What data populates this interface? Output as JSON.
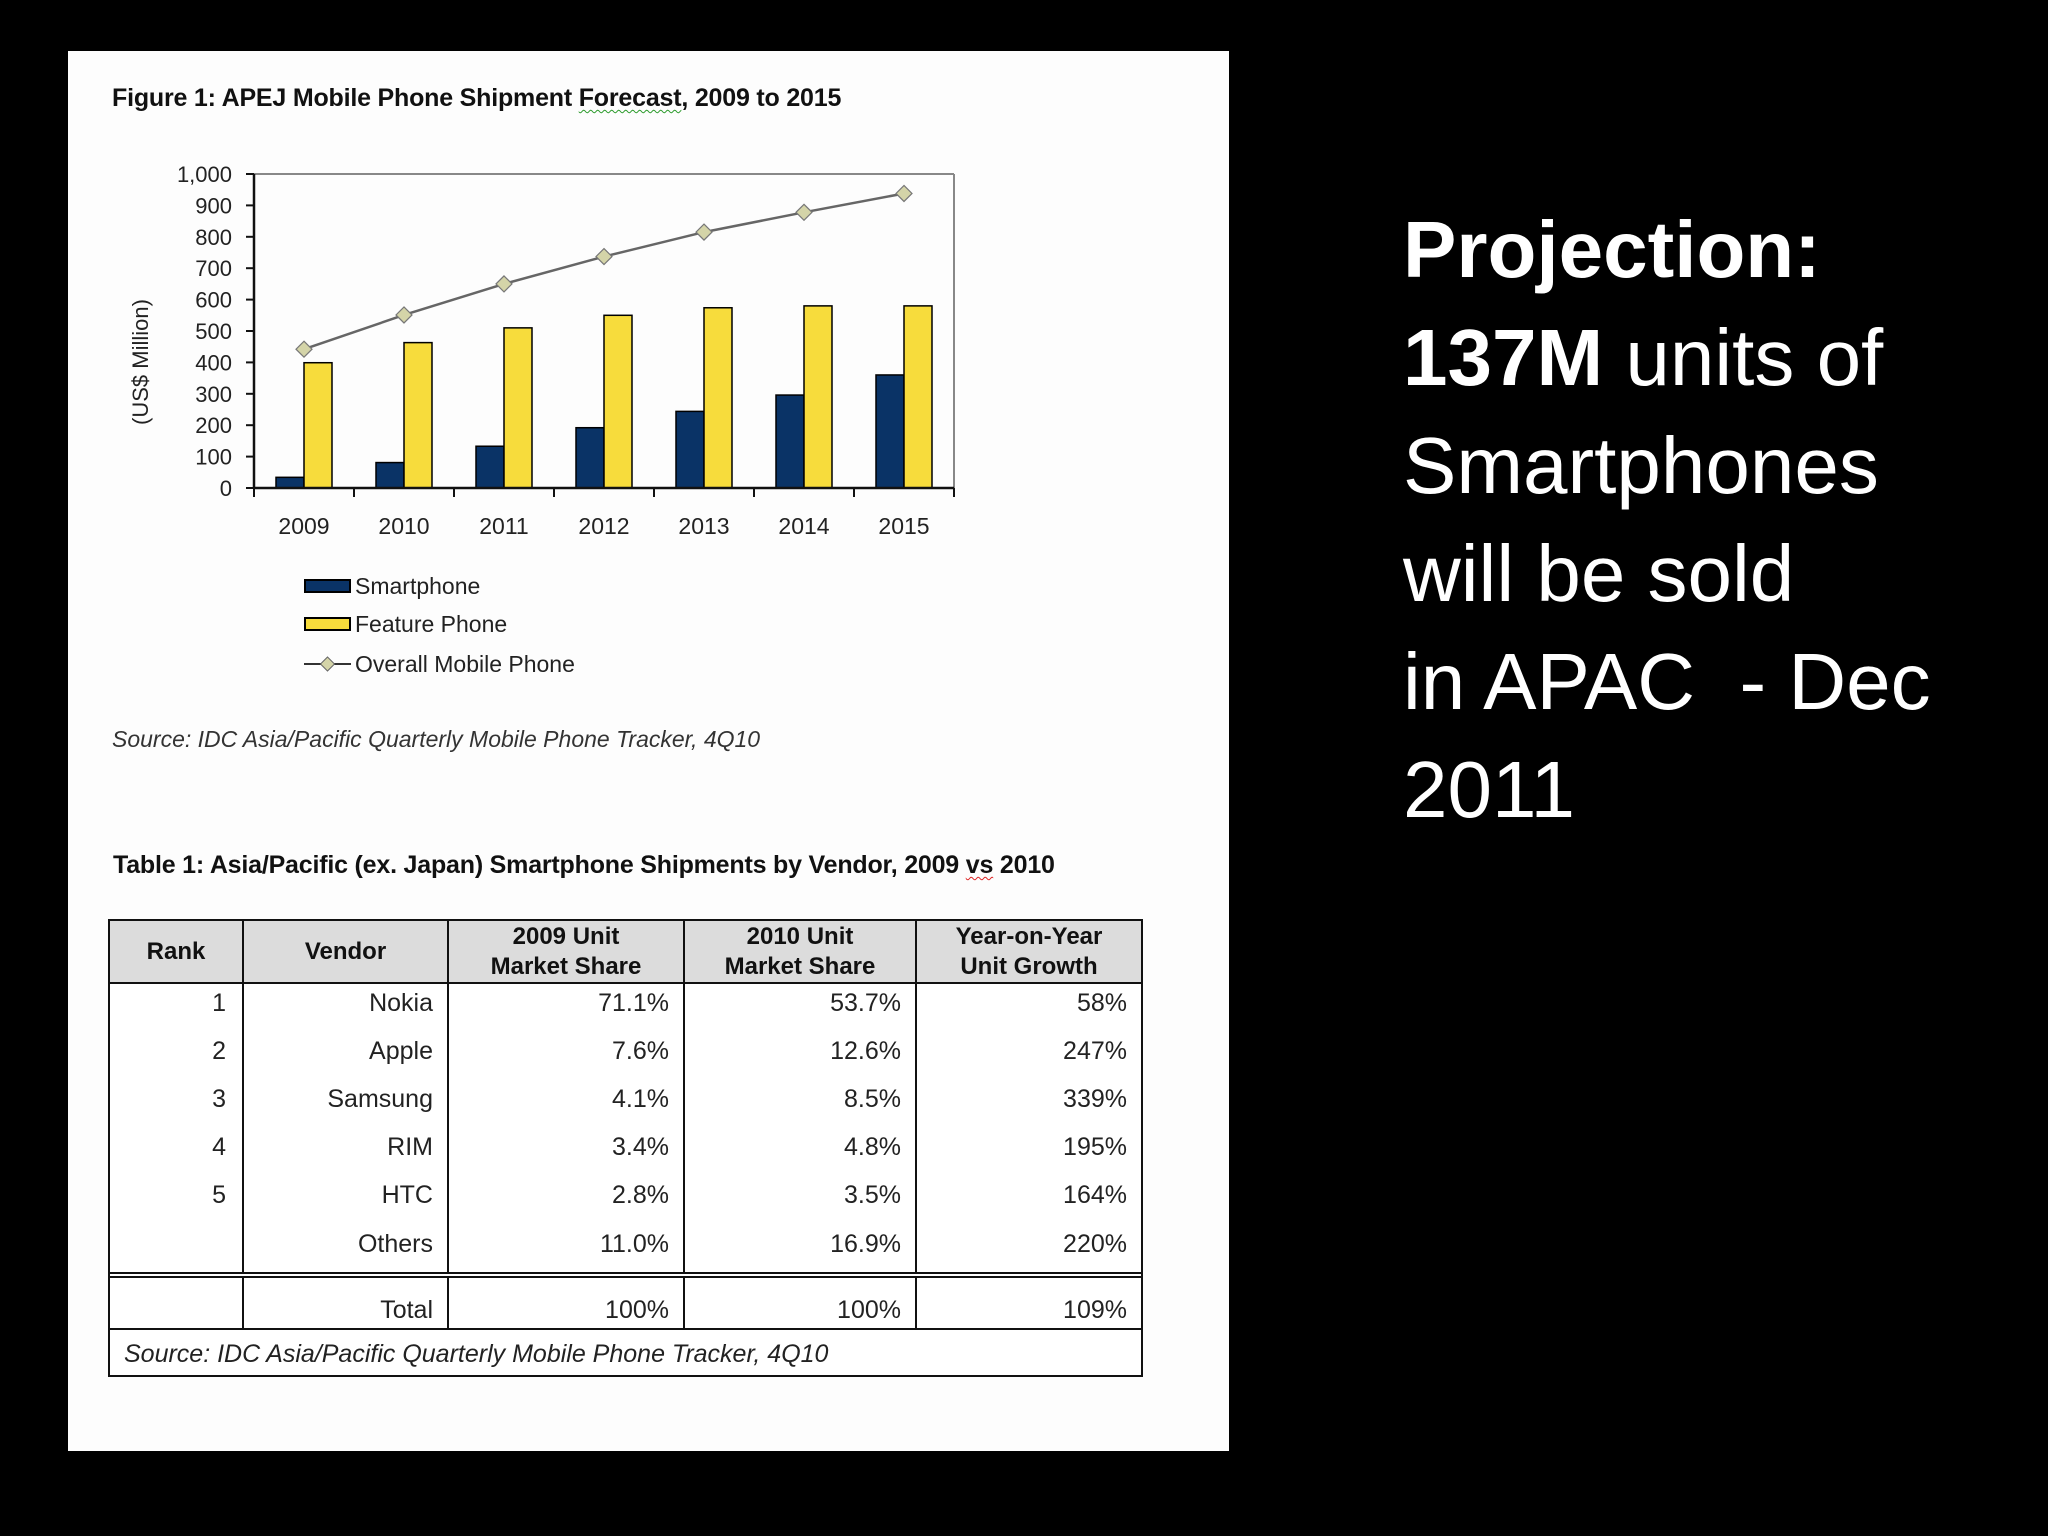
{
  "figure": {
    "title_prefix": "Figure 1: APEJ Mobile Phone Shipment ",
    "title_flagged_word": "Forecast",
    "title_suffix": ", 2009 to 2015",
    "source": "Source: IDC Asia/Pacific Quarterly  Mobile Phone Tracker, 4Q10"
  },
  "chart_data": {
    "type": "bar",
    "title": "Figure 1: APEJ Mobile Phone Shipment Forecast, 2009 to 2015",
    "xlabel": "",
    "ylabel": "(US$ Million)",
    "ylim": [
      0,
      1000
    ],
    "yticks": [
      "0",
      "100",
      "200",
      "300",
      "400",
      "500",
      "600",
      "700",
      "800",
      "900",
      "1,000"
    ],
    "categories": [
      "2009",
      "2010",
      "2011",
      "2012",
      "2013",
      "2014",
      "2015"
    ],
    "series": [
      {
        "name": "Smartphone",
        "type": "bar",
        "color": "#0a3366",
        "values": [
          34,
          81,
          133,
          192,
          244,
          296,
          360
        ]
      },
      {
        "name": "Feature Phone",
        "type": "bar",
        "color": "#f7dc3c",
        "values": [
          399,
          463,
          510,
          550,
          574,
          580,
          580
        ]
      },
      {
        "name": "Overall Mobile Phone",
        "type": "line",
        "color": "#d4d4a8",
        "values": [
          442,
          551,
          650,
          737,
          815,
          878,
          938
        ]
      }
    ],
    "legend_position": "bottom-left",
    "grid": false
  },
  "legend": {
    "items": [
      {
        "label": "Smartphone",
        "color": "#0a3366"
      },
      {
        "label": "Feature Phone",
        "color": "#f7dc3c"
      },
      {
        "label": "Overall Mobile Phone",
        "color": "#d4d4a8"
      }
    ]
  },
  "table": {
    "title_prefix": "Table 1: Asia/Pacific (ex. Japan)  Smartphone Shipments by Vendor, 2009 ",
    "title_flagged_word": "vs",
    "title_suffix": " 2010",
    "headers": [
      "Rank",
      "Vendor",
      "2009 Unit\nMarket Share",
      "2010 Unit\nMarket Share",
      "Year-on-Year\nUnit Growth"
    ],
    "header_lines": [
      [
        "Rank"
      ],
      [
        "Vendor"
      ],
      [
        "2009 Unit",
        "Market Share"
      ],
      [
        "2010 Unit",
        "Market Share"
      ],
      [
        "Year-on-Year",
        "Unit Growth"
      ]
    ],
    "rows": [
      {
        "rank": "1",
        "vendor": "Nokia",
        "share_2009": "71.1%",
        "share_2010": "53.7%",
        "growth": "58%"
      },
      {
        "rank": "2",
        "vendor": "Apple",
        "share_2009": "7.6%",
        "share_2010": "12.6%",
        "growth": "247%"
      },
      {
        "rank": "3",
        "vendor": "Samsung",
        "share_2009": "4.1%",
        "share_2010": "8.5%",
        "growth": "339%"
      },
      {
        "rank": "4",
        "vendor": "RIM",
        "share_2009": "3.4%",
        "share_2010": "4.8%",
        "growth": "195%"
      },
      {
        "rank": "5",
        "vendor": "HTC",
        "share_2009": "2.8%",
        "share_2010": "3.5%",
        "growth": "164%"
      },
      {
        "rank": "",
        "vendor": "Others",
        "share_2009": "11.0%",
        "share_2010": "16.9%",
        "growth": "220%"
      }
    ],
    "total": {
      "rank": "",
      "vendor": "Total",
      "share_2009": "100%",
      "share_2010": "100%",
      "growth": "109%"
    },
    "source": "Source: IDC Asia/Pacific Quarterly Mobile Phone Tracker, 4Q10"
  },
  "side_note": {
    "line1": "Projection:",
    "line2_bold": "137M",
    "line2_rest": " units of",
    "line3": "Smartphones",
    "line4": "will be sold",
    "line5": "in APAC  - Dec",
    "line6": "2011"
  },
  "colors": {
    "background": "#000000",
    "panel": "#fdfdfd",
    "smartphone": "#0a3366",
    "feature_phone": "#f7dc3c",
    "overall_marker": "#d4d4a8",
    "overall_line": "#777777",
    "table_header": "#dcdcdc"
  }
}
